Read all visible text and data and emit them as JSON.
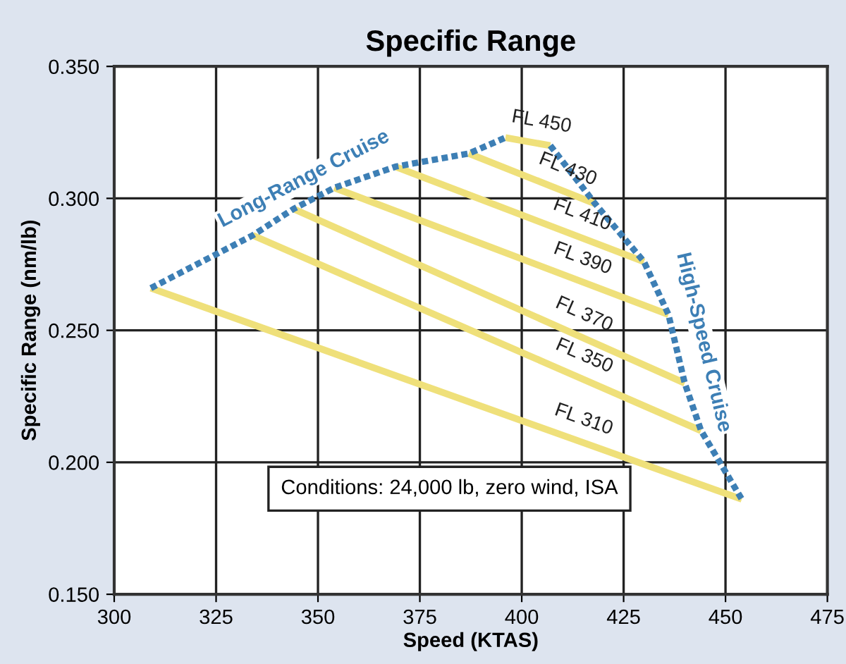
{
  "chart_data": {
    "type": "line",
    "title": "Specific Range",
    "xlabel": "Speed (KTAS)",
    "ylabel": "Specific Range (nm/lb)",
    "xlim": [
      300,
      475
    ],
    "xticks": [
      300,
      325,
      350,
      375,
      400,
      425,
      450,
      475
    ],
    "ylim": [
      0.15,
      0.35
    ],
    "yticks": [
      {
        "value": 0.15,
        "label": "0.150"
      },
      {
        "value": 0.2,
        "label": "0.200"
      },
      {
        "value": 0.25,
        "label": "0.250"
      },
      {
        "value": 0.3,
        "label": "0.300"
      },
      {
        "value": 0.35,
        "label": "0.350"
      }
    ],
    "grid": true,
    "legend": false,
    "marker": "none",
    "series": [
      {
        "name": "FL 310",
        "color": "#efe07a",
        "line_style": "solid",
        "x": [
          309,
          454
        ],
        "values": [
          0.266,
          0.186
        ]
      },
      {
        "name": "FL 350",
        "color": "#efe07a",
        "line_style": "solid",
        "x": [
          334,
          444
        ],
        "values": [
          0.286,
          0.212
        ]
      },
      {
        "name": "FL 370",
        "color": "#efe07a",
        "line_style": "solid",
        "x": [
          344,
          440
        ],
        "values": [
          0.296,
          0.23
        ]
      },
      {
        "name": "FL 390",
        "color": "#efe07a",
        "line_style": "solid",
        "x": [
          354,
          436
        ],
        "values": [
          0.304,
          0.256
        ]
      },
      {
        "name": "FL 410",
        "color": "#efe07a",
        "line_style": "solid",
        "x": [
          369,
          430
        ],
        "values": [
          0.312,
          0.276
        ]
      },
      {
        "name": "FL 430",
        "color": "#efe07a",
        "line_style": "solid",
        "x": [
          387,
          418
        ],
        "values": [
          0.317,
          0.298
        ]
      },
      {
        "name": "FL 450",
        "color": "#efe07a",
        "line_style": "solid",
        "x": [
          396,
          407
        ],
        "values": [
          0.323,
          0.32
        ]
      },
      {
        "name": "Long-Range Cruise",
        "color": "#3d7fb5",
        "line_style": "dotted",
        "x": [
          309,
          334,
          344,
          354,
          369,
          387,
          396
        ],
        "values": [
          0.266,
          0.286,
          0.296,
          0.304,
          0.312,
          0.317,
          0.323
        ]
      },
      {
        "name": "High-Speed Cruise",
        "color": "#3d7fb5",
        "line_style": "dotted",
        "x": [
          407,
          418,
          430,
          436,
          440,
          444,
          454
        ],
        "values": [
          0.32,
          0.298,
          0.276,
          0.256,
          0.23,
          0.212,
          0.186
        ]
      }
    ],
    "annotations": [
      "Conditions: 24,000 lb, zero wind, ISA"
    ]
  }
}
